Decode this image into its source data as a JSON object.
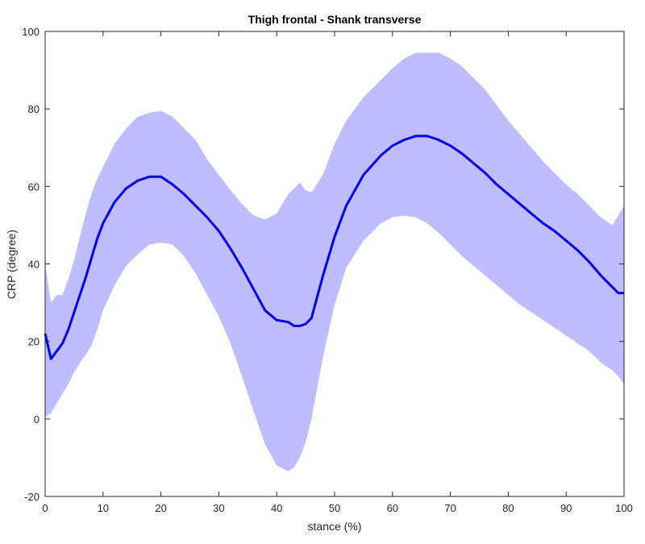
{
  "chart_data": {
    "type": "area",
    "title": "Thigh frontal - Shank transverse",
    "xlabel": "stance (%)",
    "ylabel": "CRP (degree)",
    "xlim": [
      0,
      100
    ],
    "ylim": [
      -20,
      100
    ],
    "xticks": [
      0,
      10,
      20,
      30,
      40,
      50,
      60,
      70,
      80,
      90,
      100
    ],
    "yticks": [
      -20,
      0,
      20,
      40,
      60,
      80,
      100
    ],
    "grid": false,
    "colors": {
      "mean_line": "#0000ee",
      "band_fill": "#bdbdff",
      "axes": "#262626"
    },
    "x": [
      0,
      1,
      2,
      3,
      4,
      5,
      6,
      7,
      8,
      9,
      10,
      12,
      14,
      16,
      18,
      20,
      22,
      24,
      26,
      28,
      30,
      32,
      34,
      36,
      38,
      40,
      42,
      43,
      44,
      45,
      46,
      48,
      50,
      52,
      55,
      58,
      60,
      62,
      64,
      66,
      68,
      70,
      72,
      74,
      76,
      78,
      80,
      82,
      84,
      86,
      88,
      90,
      92,
      94,
      96,
      98,
      99,
      100
    ],
    "series": [
      {
        "values": [
          22,
          15.5,
          17.5,
          19.5,
          23,
          27.5,
          32,
          36.5,
          41.5,
          46.5,
          50.5,
          56,
          59.5,
          61.5,
          62.5,
          62.5,
          60.5,
          58,
          55,
          52,
          48.5,
          44,
          39,
          33.5,
          28,
          25.5,
          25,
          24,
          24,
          24.5,
          26,
          37,
          47,
          55,
          63,
          68,
          70.5,
          72,
          73,
          73,
          72,
          70.5,
          68.5,
          66,
          63.5,
          60.5,
          58,
          55.5,
          53,
          50.5,
          48.5,
          46,
          43.5,
          40.5,
          37,
          34,
          32.5,
          32.5
        ]
      }
    ],
    "band": {
      "upper": [
        40,
        30,
        32,
        32,
        36,
        41,
        47,
        53,
        58,
        62,
        65,
        71,
        75,
        78,
        79,
        79.5,
        78,
        75,
        72,
        67,
        63,
        59,
        55.5,
        52.5,
        51.5,
        53,
        58,
        59.5,
        61,
        59,
        58.5,
        63,
        71,
        77,
        83,
        87.5,
        90.5,
        93,
        94.5,
        94.5,
        94.5,
        93,
        91,
        88,
        85,
        81,
        77,
        73.5,
        70,
        66.5,
        63.5,
        60.5,
        58,
        55,
        52,
        50,
        52.5,
        55
      ],
      "lower": [
        0.5,
        1.5,
        4,
        6.5,
        9,
        12,
        14.5,
        16.5,
        19,
        23,
        28,
        34.5,
        39.5,
        42.5,
        45,
        45.5,
        45,
        42,
        37.5,
        32,
        26.5,
        19.5,
        11,
        2,
        -6.5,
        -12,
        -13.5,
        -12.5,
        -10,
        -6,
        0,
        16,
        29.5,
        39,
        46,
        50.5,
        52,
        52.5,
        52,
        50.5,
        48,
        45,
        42,
        39.5,
        37,
        34.5,
        32,
        29.5,
        27.5,
        25.5,
        23.5,
        21.5,
        19.5,
        17.5,
        14.5,
        12.5,
        11,
        9
      ]
    }
  }
}
